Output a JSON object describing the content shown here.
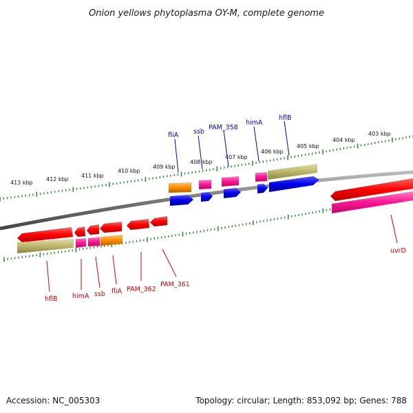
{
  "title": "Onion yellows phytoplasma OY-M, complete genome",
  "footer": {
    "accession": "Accession: NC_005303",
    "summary": "Topology: circular; Length: 853,092 bp; Genes: 788"
  },
  "colors": {
    "backbone": "#888888",
    "tick": "#2e8b2e",
    "forward_label": "#0000cc",
    "reverse_label": "#cc0000",
    "cds_red": "#ff0000",
    "cds_blue": "#0000ee",
    "cds_pink": "#ff1493",
    "cds_orange": "#ff8c00",
    "cds_tan": "#bdb76b"
  },
  "scale_labels": [
    "413 kbp",
    "412 kbp",
    "411 kbp",
    "410 kbp",
    "409 kbp",
    "408 kbp",
    "407 kbp",
    "406 kbp",
    "405 kbp",
    "404 kbp",
    "403 kbp"
  ],
  "forward_gene_labels": [
    "fliA",
    "ssb",
    "PAM_358",
    "himA",
    "hflB"
  ],
  "reverse_gene_labels": [
    "hflB",
    "himA",
    "ssb",
    "fliA",
    "PAM_362",
    "PAM_361",
    "uvrD"
  ]
}
